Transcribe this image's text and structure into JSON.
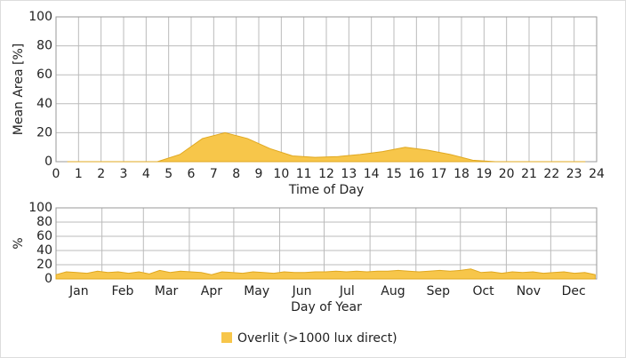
{
  "chart_data": [
    {
      "type": "area",
      "color": "#f7c64a",
      "xlabel": "Time of Day",
      "ylabel": "Mean Area [%]",
      "x": [
        0.5,
        1.5,
        2.5,
        3.5,
        4.5,
        5.5,
        6.5,
        7.5,
        8.5,
        9.5,
        10.5,
        11.5,
        12.5,
        13.5,
        14.5,
        15.5,
        16.5,
        17.5,
        18.5,
        19.5,
        20.5,
        21.5,
        22.5,
        23.5
      ],
      "values": [
        0,
        0,
        0,
        0,
        0,
        5,
        16,
        20,
        16,
        9,
        4,
        3,
        3.5,
        5,
        7,
        10,
        8,
        5,
        1,
        0,
        0,
        0,
        0,
        0
      ],
      "xlim": [
        0,
        24
      ],
      "xticks": [
        0,
        1,
        2,
        3,
        4,
        5,
        6,
        7,
        8,
        9,
        10,
        11,
        12,
        13,
        14,
        15,
        16,
        17,
        18,
        19,
        20,
        21,
        22,
        23,
        24
      ],
      "ylim": [
        0,
        100
      ],
      "yticks": [
        0,
        20,
        40,
        60,
        80,
        100
      ],
      "grid": true
    },
    {
      "type": "area",
      "xlabel": "Day of Year",
      "ylabel": "%",
      "x": [
        0,
        7,
        14,
        21,
        28,
        35,
        42,
        49,
        56,
        63,
        70,
        77,
        84,
        91,
        98,
        105,
        112,
        119,
        126,
        133,
        140,
        147,
        154,
        161,
        168,
        175,
        182,
        189,
        196,
        203,
        210,
        217,
        224,
        231,
        238,
        245,
        252,
        259,
        266,
        273,
        280,
        287,
        294,
        301,
        308,
        315,
        322,
        329,
        336,
        343,
        350,
        357,
        364
      ],
      "series": [
        {
          "name": "Overlit (>1000 lux direct)",
          "color": "#f7c64a",
          "values": [
            6,
            10,
            9,
            8,
            11,
            9,
            10,
            8,
            10,
            7,
            12,
            9,
            11,
            10,
            9,
            6,
            10,
            9,
            8,
            10,
            9,
            8,
            10,
            9,
            9,
            10,
            10,
            11,
            10,
            11,
            10,
            11,
            11,
            12,
            11,
            10,
            11,
            12,
            11,
            12,
            14,
            9,
            10,
            8,
            10,
            9,
            10,
            8,
            9,
            10,
            8,
            9,
            6
          ]
        }
      ],
      "xlim": [
        0,
        365
      ],
      "xticks": [
        {
          "value": 0,
          "label": "Jan"
        },
        {
          "value": 31,
          "label": "Feb"
        },
        {
          "value": 59,
          "label": "Mar"
        },
        {
          "value": 90,
          "label": "Apr"
        },
        {
          "value": 120,
          "label": "May"
        },
        {
          "value": 151,
          "label": "Jun"
        },
        {
          "value": 181,
          "label": "Jul"
        },
        {
          "value": 212,
          "label": "Aug"
        },
        {
          "value": 243,
          "label": "Sep"
        },
        {
          "value": 273,
          "label": "Oct"
        },
        {
          "value": 304,
          "label": "Nov"
        },
        {
          "value": 334,
          "label": "Dec"
        }
      ],
      "ylim": [
        0,
        100
      ],
      "yticks": [
        0,
        20,
        40,
        60,
        80,
        100
      ],
      "grid": true
    }
  ]
}
